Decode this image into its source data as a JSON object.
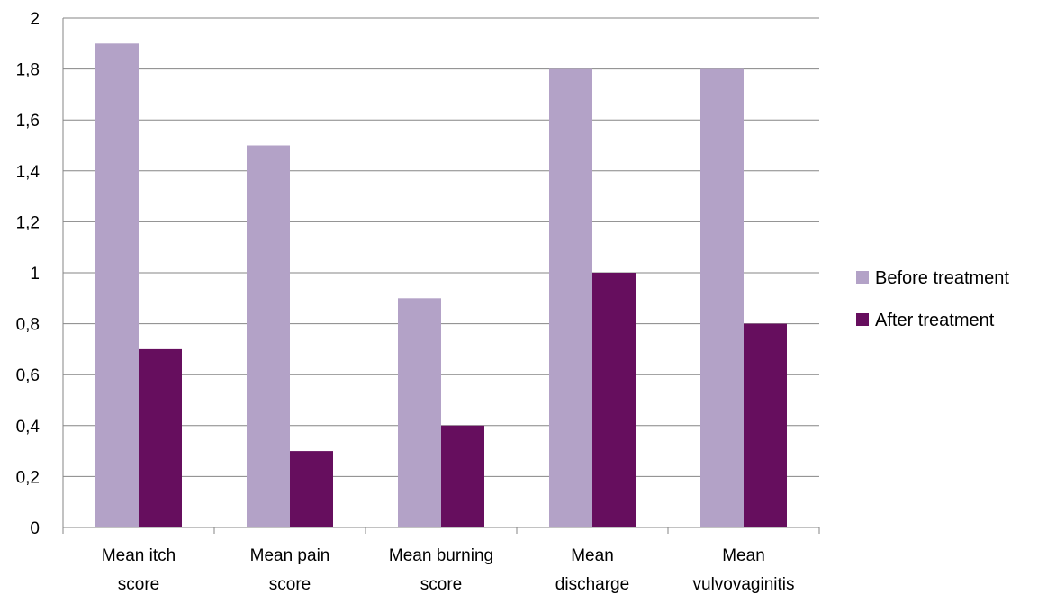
{
  "chart_data": {
    "type": "bar",
    "title": "",
    "xlabel": "",
    "ylabel": "",
    "categories": [
      [
        "Mean itch",
        "score"
      ],
      [
        "Mean pain",
        "score"
      ],
      [
        "Mean burning",
        "score"
      ],
      [
        "Mean",
        "discharge"
      ],
      [
        "Mean",
        "vulvovaginitis"
      ]
    ],
    "series": [
      {
        "name": "Before treatment",
        "values": [
          1.9,
          1.5,
          0.9,
          1.8,
          1.8
        ],
        "color": "#b3a2c7"
      },
      {
        "name": "After treatment",
        "values": [
          0.7,
          0.3,
          0.4,
          1.0,
          0.8
        ],
        "color": "#660e5e"
      }
    ],
    "ylim": [
      0,
      2
    ],
    "yticks": [
      0,
      0.2,
      0.4,
      0.6,
      0.8,
      1,
      1.2,
      1.4,
      1.6,
      1.8,
      2
    ],
    "ytick_labels": [
      "0",
      "0,2",
      "0,4",
      "0,6",
      "0,8",
      "1",
      "1,2",
      "1,4",
      "1,6",
      "1,8",
      "2"
    ],
    "grid": true,
    "legend_position": "right"
  }
}
